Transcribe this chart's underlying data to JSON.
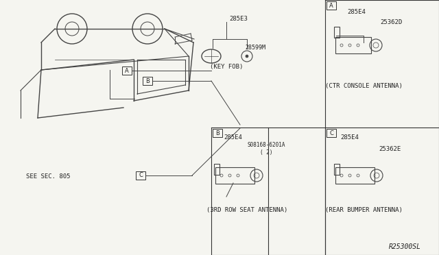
{
  "bg_color": "#f5f5f0",
  "title_code": "R25300SL",
  "labels": {
    "key_fob_part": "285E3",
    "key_fob_sub": "28599M",
    "key_fob_label": "(KEY FOB)",
    "ctr_part1": "285E4",
    "ctr_part2": "25362D",
    "ctr_label": "(CTR CONSOLE ANTENNA)",
    "row3_part1": "285E4",
    "row3_part2": "S08168-6201A\n( 2)",
    "row3_label": "(3RD ROW SEAT ANTENNA)",
    "rear_part1": "285E4",
    "rear_part2": "25362E",
    "rear_label": "(REAR BUMPER ANTENNA)",
    "see_sec": "SEE SEC. 805",
    "section_A": "A",
    "section_B": "B",
    "section_C": "C"
  },
  "box_line_color": "#333333",
  "text_color": "#222222",
  "line_color": "#444444"
}
